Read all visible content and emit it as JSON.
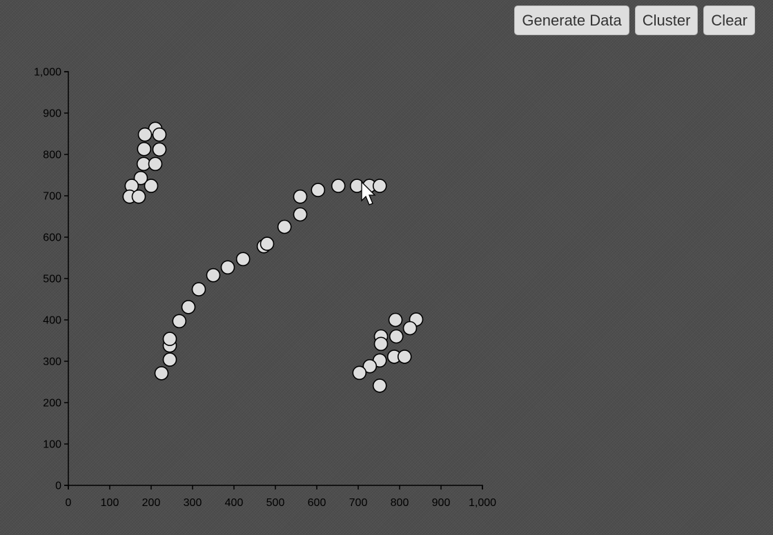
{
  "toolbar": {
    "generate_label": "Generate Data",
    "cluster_label": "Cluster",
    "clear_label": "Clear"
  },
  "colors": {
    "background": "#4d4d4d",
    "point_fill": "#dedede",
    "point_stroke": "#000000",
    "button_bg": "#dedede"
  },
  "chart_data": {
    "type": "scatter",
    "title": "",
    "xlabel": "",
    "ylabel": "",
    "xlim": [
      0,
      1000
    ],
    "ylim": [
      0,
      1000
    ],
    "x_ticks": [
      0,
      100,
      200,
      300,
      400,
      500,
      600,
      700,
      800,
      900,
      1000
    ],
    "y_ticks": [
      0,
      100,
      200,
      300,
      400,
      500,
      600,
      700,
      800,
      900,
      1000
    ],
    "x_tick_labels": [
      "0",
      "100",
      "200",
      "300",
      "400",
      "500",
      "600",
      "700",
      "800",
      "900",
      "1,000"
    ],
    "y_tick_labels": [
      "0",
      "100",
      "200",
      "300",
      "400",
      "500",
      "600",
      "700",
      "800",
      "900",
      "1,000"
    ],
    "grid": false,
    "points": [
      {
        "x": 210,
        "y": 862
      },
      {
        "x": 185,
        "y": 848
      },
      {
        "x": 220,
        "y": 848
      },
      {
        "x": 183,
        "y": 813
      },
      {
        "x": 220,
        "y": 812
      },
      {
        "x": 182,
        "y": 777
      },
      {
        "x": 210,
        "y": 777
      },
      {
        "x": 175,
        "y": 743
      },
      {
        "x": 153,
        "y": 724
      },
      {
        "x": 200,
        "y": 724
      },
      {
        "x": 148,
        "y": 698
      },
      {
        "x": 170,
        "y": 698
      },
      {
        "x": 225,
        "y": 271
      },
      {
        "x": 245,
        "y": 304
      },
      {
        "x": 245,
        "y": 338
      },
      {
        "x": 245,
        "y": 354
      },
      {
        "x": 268,
        "y": 397
      },
      {
        "x": 290,
        "y": 431
      },
      {
        "x": 315,
        "y": 474
      },
      {
        "x": 350,
        "y": 508
      },
      {
        "x": 385,
        "y": 527
      },
      {
        "x": 422,
        "y": 547
      },
      {
        "x": 472,
        "y": 578
      },
      {
        "x": 480,
        "y": 584
      },
      {
        "x": 522,
        "y": 625
      },
      {
        "x": 560,
        "y": 655
      },
      {
        "x": 560,
        "y": 698
      },
      {
        "x": 603,
        "y": 714
      },
      {
        "x": 652,
        "y": 724
      },
      {
        "x": 697,
        "y": 724
      },
      {
        "x": 727,
        "y": 724
      },
      {
        "x": 752,
        "y": 724
      },
      {
        "x": 755,
        "y": 360
      },
      {
        "x": 755,
        "y": 342
      },
      {
        "x": 790,
        "y": 400
      },
      {
        "x": 840,
        "y": 401
      },
      {
        "x": 825,
        "y": 380
      },
      {
        "x": 792,
        "y": 360
      },
      {
        "x": 787,
        "y": 311
      },
      {
        "x": 812,
        "y": 311
      },
      {
        "x": 752,
        "y": 302
      },
      {
        "x": 728,
        "y": 288
      },
      {
        "x": 703,
        "y": 272
      },
      {
        "x": 752,
        "y": 241
      }
    ]
  }
}
